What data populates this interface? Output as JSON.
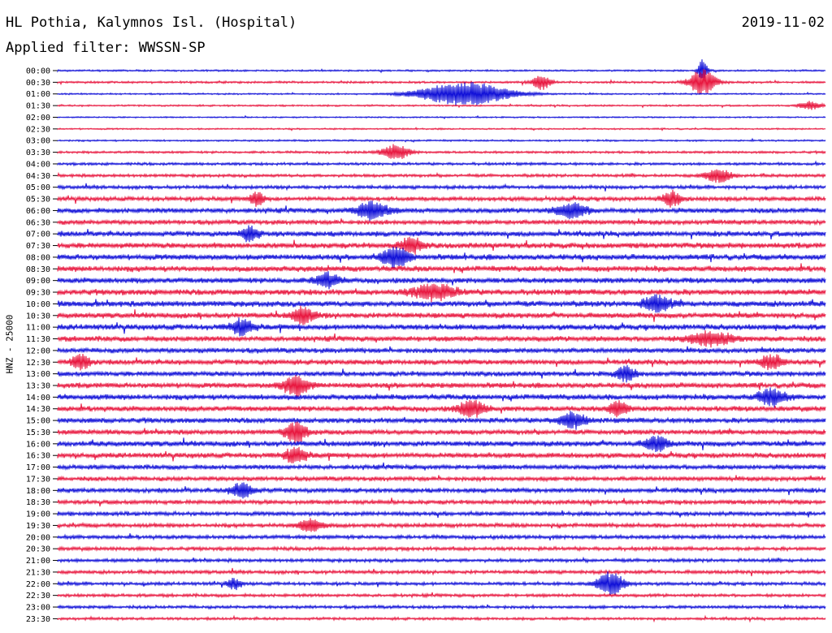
{
  "header": {
    "station": "HL Pothia, Kalymnos Isl. (Hospital)",
    "date": "2019-11-02",
    "filter": "Applied filter: WWSSN-SP",
    "channel_label": "HNZ - 25000"
  },
  "colors": {
    "odd_trace": "#1010d8",
    "even_trace": "#e8163e",
    "text": "#000000",
    "background": "#ffffff"
  },
  "chart_data": {
    "type": "seismogram",
    "title": "HL Pothia, Kalymnos Isl. (Hospital)",
    "date": "2019-11-02",
    "ylabel": "HNZ - 25000",
    "row_labels": [
      "00:00",
      "00:30",
      "01:00",
      "01:30",
      "02:00",
      "02:30",
      "03:00",
      "03:30",
      "04:00",
      "04:30",
      "05:00",
      "05:30",
      "06:00",
      "06:30",
      "07:00",
      "07:30",
      "08:00",
      "08:30",
      "09:00",
      "09:30",
      "10:00",
      "10:30",
      "11:00",
      "11:30",
      "12:00",
      "12:30",
      "13:00",
      "13:30",
      "14:00",
      "14:30",
      "15:00",
      "15:30",
      "16:00",
      "16:30",
      "17:00",
      "17:30",
      "18:00",
      "18:30",
      "19:00",
      "19:30",
      "20:00",
      "20:30",
      "21:00",
      "21:30",
      "22:00",
      "22:30",
      "23:00",
      "23:30"
    ],
    "noise_level": [
      0.9,
      1.1,
      0.8,
      0.9,
      0.7,
      0.8,
      0.9,
      1.2,
      1.4,
      1.6,
      1.8,
      2.2,
      2.6,
      2.4,
      2.8,
      2.9,
      3.0,
      3.0,
      2.9,
      3.0,
      3.1,
      2.8,
      3.0,
      2.8,
      2.6,
      2.7,
      2.6,
      2.8,
      2.9,
      2.8,
      2.7,
      2.6,
      2.8,
      2.7,
      2.4,
      2.3,
      2.4,
      2.2,
      2.2,
      2.1,
      2.0,
      1.9,
      1.8,
      1.8,
      1.7,
      1.6,
      1.6,
      1.4
    ],
    "events": [
      {
        "row": "00:00",
        "pos": 0.84,
        "amp": 14,
        "width": 0.004
      },
      {
        "row": "00:30",
        "pos": 0.63,
        "amp": 9,
        "width": 0.008
      },
      {
        "row": "00:30",
        "pos": 0.84,
        "amp": 16,
        "width": 0.012
      },
      {
        "row": "01:00",
        "pos": 0.53,
        "amp": 15,
        "width": 0.04
      },
      {
        "row": "01:30",
        "pos": 0.98,
        "amp": 5,
        "width": 0.01
      },
      {
        "row": "03:30",
        "pos": 0.44,
        "amp": 10,
        "width": 0.012
      },
      {
        "row": "04:30",
        "pos": 0.86,
        "amp": 8,
        "width": 0.012
      },
      {
        "row": "05:30",
        "pos": 0.26,
        "amp": 9,
        "width": 0.006
      },
      {
        "row": "05:30",
        "pos": 0.8,
        "amp": 9,
        "width": 0.008
      },
      {
        "row": "06:00",
        "pos": 0.41,
        "amp": 11,
        "width": 0.014
      },
      {
        "row": "06:00",
        "pos": 0.67,
        "amp": 9,
        "width": 0.014
      },
      {
        "row": "07:00",
        "pos": 0.25,
        "amp": 8,
        "width": 0.008
      },
      {
        "row": "07:30",
        "pos": 0.46,
        "amp": 9,
        "width": 0.01
      },
      {
        "row": "08:00",
        "pos": 0.44,
        "amp": 12,
        "width": 0.012
      },
      {
        "row": "09:00",
        "pos": 0.35,
        "amp": 9,
        "width": 0.01
      },
      {
        "row": "09:30",
        "pos": 0.49,
        "amp": 9,
        "width": 0.02
      },
      {
        "row": "10:00",
        "pos": 0.78,
        "amp": 10,
        "width": 0.012
      },
      {
        "row": "10:30",
        "pos": 0.32,
        "amp": 10,
        "width": 0.01
      },
      {
        "row": "11:00",
        "pos": 0.24,
        "amp": 9,
        "width": 0.01
      },
      {
        "row": "11:30",
        "pos": 0.85,
        "amp": 8,
        "width": 0.02
      },
      {
        "row": "12:30",
        "pos": 0.03,
        "amp": 9,
        "width": 0.008
      },
      {
        "row": "12:30",
        "pos": 0.93,
        "amp": 8,
        "width": 0.01
      },
      {
        "row": "13:00",
        "pos": 0.74,
        "amp": 9,
        "width": 0.008
      },
      {
        "row": "13:30",
        "pos": 0.31,
        "amp": 12,
        "width": 0.012
      },
      {
        "row": "14:00",
        "pos": 0.93,
        "amp": 10,
        "width": 0.012
      },
      {
        "row": "14:30",
        "pos": 0.54,
        "amp": 10,
        "width": 0.012
      },
      {
        "row": "14:30",
        "pos": 0.73,
        "amp": 9,
        "width": 0.008
      },
      {
        "row": "15:00",
        "pos": 0.67,
        "amp": 9,
        "width": 0.012
      },
      {
        "row": "15:30",
        "pos": 0.31,
        "amp": 12,
        "width": 0.01
      },
      {
        "row": "16:00",
        "pos": 0.78,
        "amp": 9,
        "width": 0.01
      },
      {
        "row": "16:30",
        "pos": 0.31,
        "amp": 9,
        "width": 0.01
      },
      {
        "row": "18:00",
        "pos": 0.24,
        "amp": 9,
        "width": 0.01
      },
      {
        "row": "19:30",
        "pos": 0.33,
        "amp": 7,
        "width": 0.012
      },
      {
        "row": "22:00",
        "pos": 0.72,
        "amp": 14,
        "width": 0.012
      },
      {
        "row": "22:00",
        "pos": 0.23,
        "amp": 7,
        "width": 0.006
      }
    ]
  }
}
